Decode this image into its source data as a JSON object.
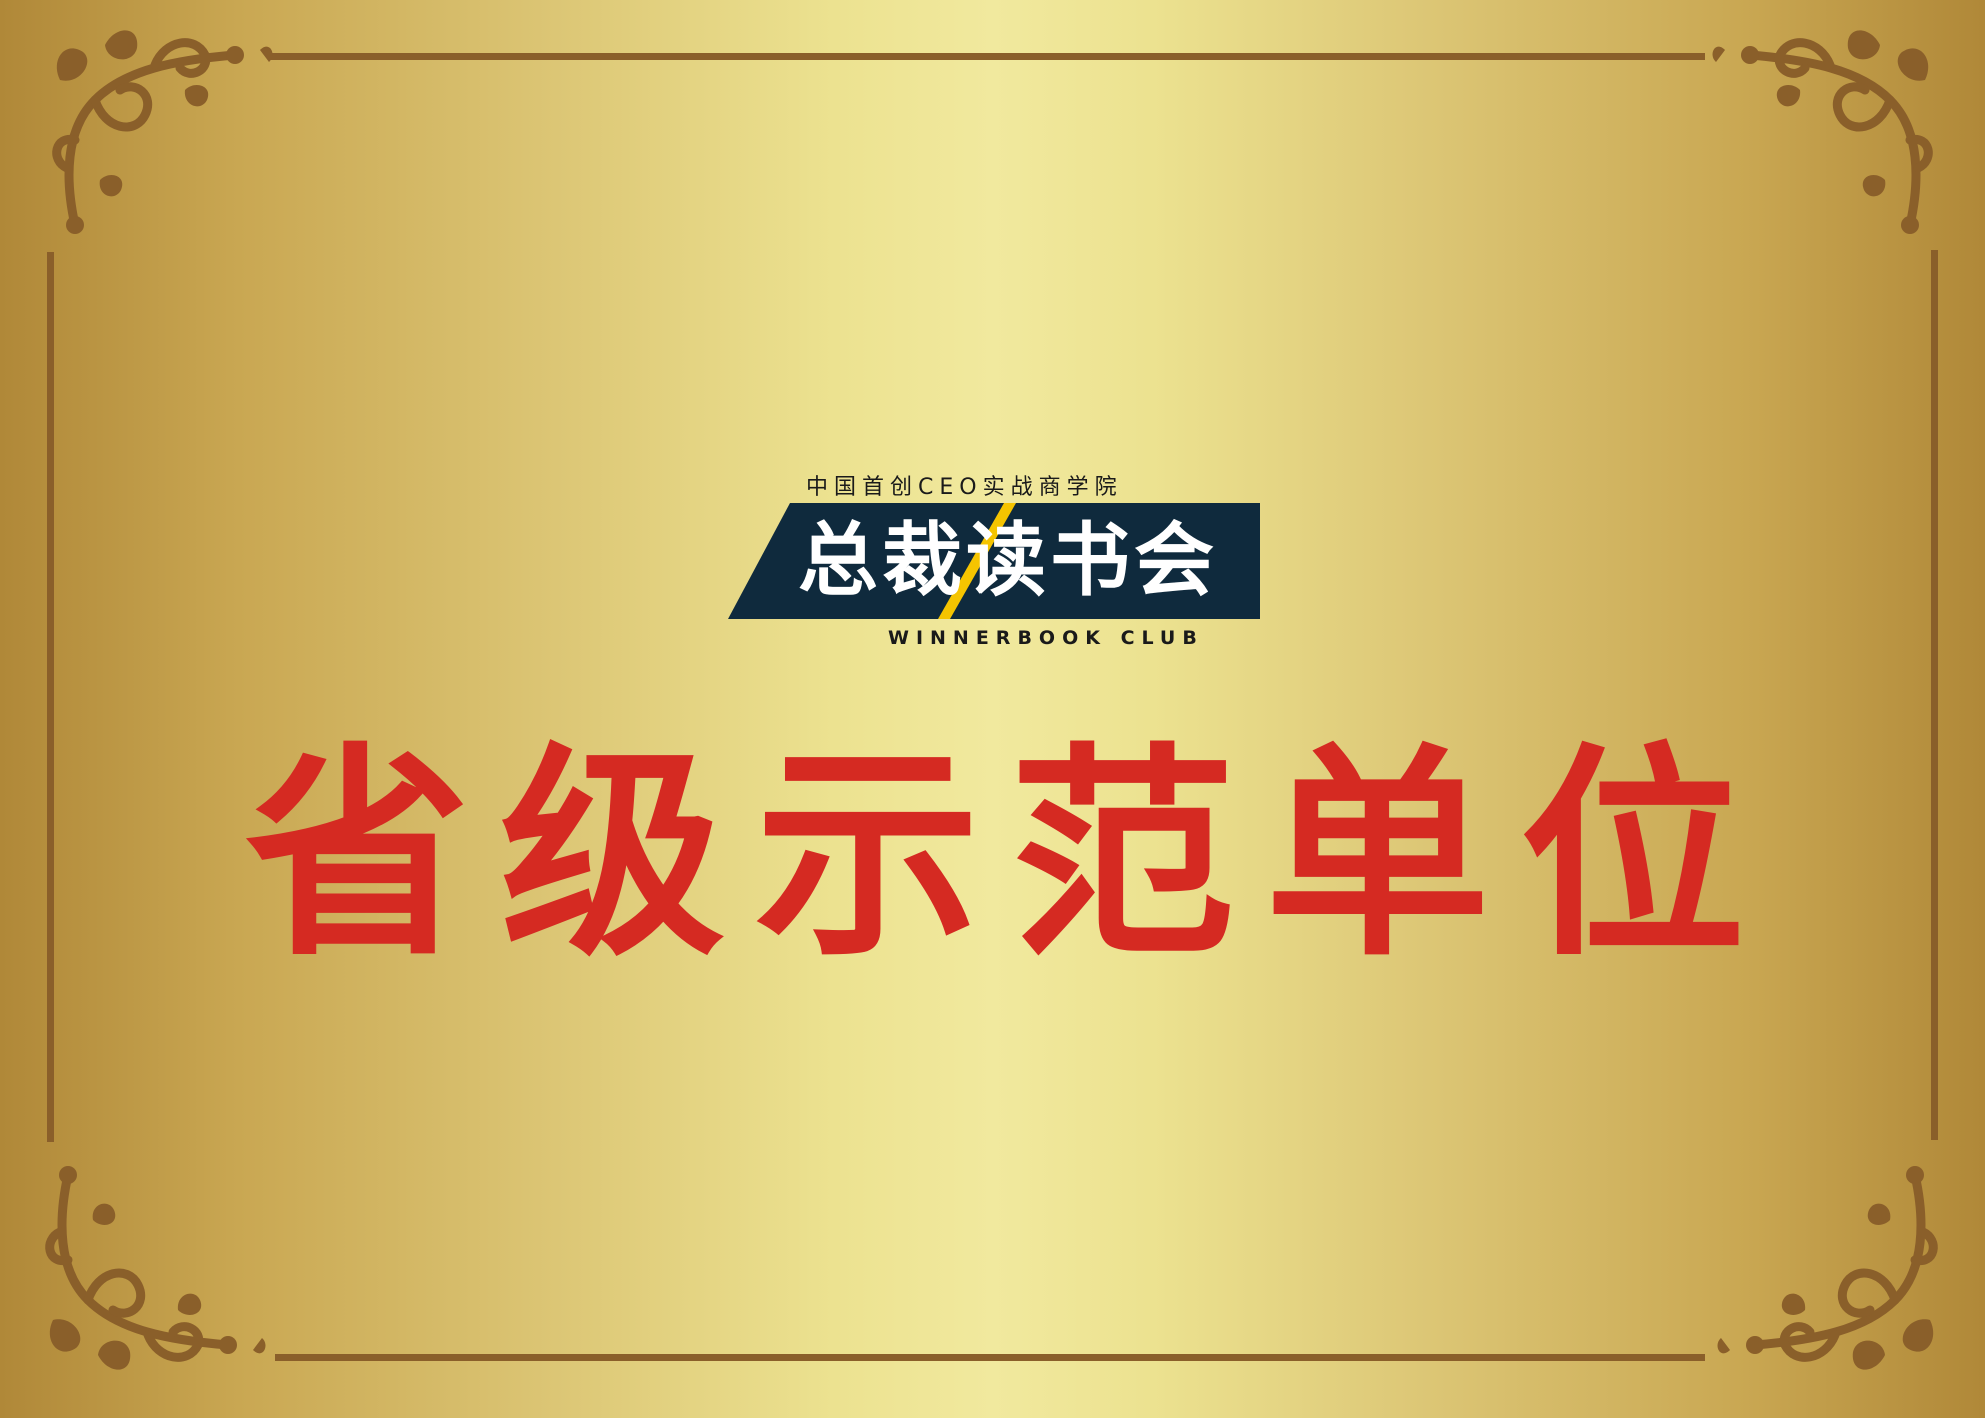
{
  "logo": {
    "tagline": "中国首创CEO实战商学院",
    "name": "总裁读书会",
    "english": "WINNERBOOK CLUB"
  },
  "headline": "省级示范单位",
  "colors": {
    "gold_light": "#f1e99e",
    "gold_dark": "#b08838",
    "frame_brown": "#8a5f2a",
    "headline_red": "#d52a22",
    "logo_navy": "#0f2a3d",
    "logo_accent_yellow": "#f5c400"
  },
  "icons": {
    "corner": "ornate-scroll-corner-icon"
  }
}
